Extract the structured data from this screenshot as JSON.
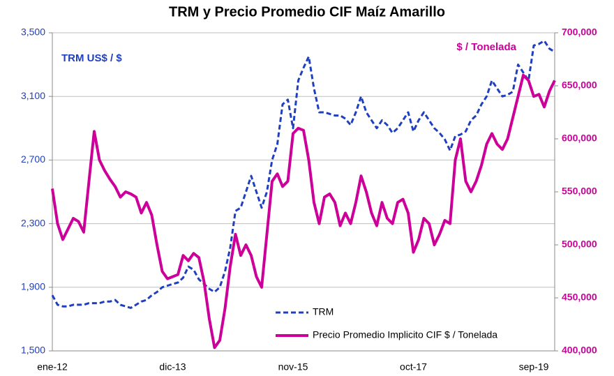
{
  "chart_data": {
    "type": "line",
    "title": "TRM y Precio Promedio CIF Maíz Amarillo",
    "annotations": [
      "TRM US$ /  $",
      "$ / Tonelada"
    ],
    "categories": [
      "ene-12",
      null,
      null,
      null,
      null,
      null,
      null,
      null,
      null,
      null,
      null,
      null,
      null,
      null,
      null,
      null,
      null,
      null,
      null,
      null,
      null,
      null,
      null,
      "dic-13",
      null,
      null,
      null,
      null,
      null,
      null,
      null,
      null,
      null,
      null,
      null,
      null,
      null,
      null,
      null,
      null,
      null,
      null,
      null,
      null,
      null,
      null,
      "nov-15",
      null,
      null,
      null,
      null,
      null,
      null,
      null,
      null,
      null,
      null,
      null,
      null,
      null,
      null,
      null,
      null,
      null,
      null,
      null,
      null,
      null,
      null,
      "oct-17",
      null,
      null,
      null,
      null,
      null,
      null,
      null,
      null,
      null,
      null,
      null,
      null,
      null,
      null,
      null,
      null,
      null,
      null,
      null,
      null,
      null,
      null,
      "sep-19",
      null,
      null,
      null,
      null
    ],
    "series": [
      {
        "name": "TRM",
        "color": "#1f3fbf",
        "dash": true,
        "values": [
          1850,
          1790,
          1780,
          1780,
          1790,
          1790,
          1790,
          1800,
          1800,
          1800,
          1810,
          1810,
          1820,
          1790,
          1780,
          1770,
          1790,
          1810,
          1820,
          1850,
          1870,
          1900,
          1910,
          1920,
          1930,
          1960,
          2030,
          2010,
          1950,
          1920,
          1890,
          1870,
          1900,
          2000,
          2150,
          2380,
          2400,
          2500,
          2600,
          2500,
          2400,
          2500,
          2700,
          2800,
          3050,
          3080,
          2900,
          3200,
          3280,
          3350,
          3150,
          3000,
          3000,
          2990,
          2980,
          2980,
          2960,
          2920,
          3000,
          3100,
          3000,
          2950,
          2900,
          2950,
          2920,
          2870,
          2900,
          2950,
          3000,
          2880,
          2950,
          3000,
          2950,
          2900,
          2870,
          2830,
          2760,
          2850,
          2860,
          2880,
          2950,
          2980,
          3050,
          3100,
          3200,
          3150,
          3100,
          3110,
          3130,
          3300,
          3250,
          3200,
          3420,
          3430,
          3450,
          3400,
          3380
        ]
      },
      {
        "name": "Precio Promedio Implicito CIF $ / Tonelada",
        "color": "#cc0099",
        "axis": "y2",
        "values": [
          553000,
          520000,
          505000,
          515000,
          525000,
          522000,
          512000,
          560000,
          607000,
          580000,
          570000,
          562000,
          555000,
          545000,
          550000,
          548000,
          545000,
          530000,
          540000,
          528000,
          500000,
          475000,
          468000,
          470000,
          472000,
          490000,
          485000,
          492000,
          488000,
          465000,
          430000,
          403000,
          410000,
          440000,
          480000,
          510000,
          490000,
          500000,
          490000,
          470000,
          460000,
          510000,
          560000,
          567000,
          555000,
          560000,
          605000,
          610000,
          608000,
          580000,
          540000,
          520000,
          545000,
          548000,
          540000,
          518000,
          530000,
          520000,
          540000,
          565000,
          550000,
          530000,
          518000,
          540000,
          525000,
          520000,
          540000,
          543000,
          530000,
          493000,
          505000,
          525000,
          520000,
          500000,
          510000,
          523000,
          520000,
          580000,
          600000,
          560000,
          550000,
          560000,
          575000,
          595000,
          605000,
          595000,
          590000,
          600000,
          620000,
          640000,
          660000,
          655000,
          640000,
          642000,
          630000,
          645000,
          655000
        ]
      }
    ],
    "ylim": [
      1500,
      3500
    ],
    "yticks": [
      {
        "value": 1500,
        "label": "1,500"
      },
      {
        "value": 1900,
        "label": "1,900"
      },
      {
        "value": 2300,
        "label": "2,300"
      },
      {
        "value": 2700,
        "label": "2,700"
      },
      {
        "value": 3100,
        "label": "3,100"
      },
      {
        "value": 3500,
        "label": "3,500"
      }
    ],
    "y2lim": [
      400000,
      700000
    ],
    "y2ticks": [
      {
        "value": 400000,
        "label": "400,000"
      },
      {
        "value": 450000,
        "label": "450,000"
      },
      {
        "value": 500000,
        "label": "500,000"
      },
      {
        "value": 550000,
        "label": "550,000"
      },
      {
        "value": 600000,
        "label": "600,000"
      },
      {
        "value": 650000,
        "label": "650,000"
      },
      {
        "value": 700000,
        "label": "700,000"
      }
    ],
    "grid": true
  }
}
